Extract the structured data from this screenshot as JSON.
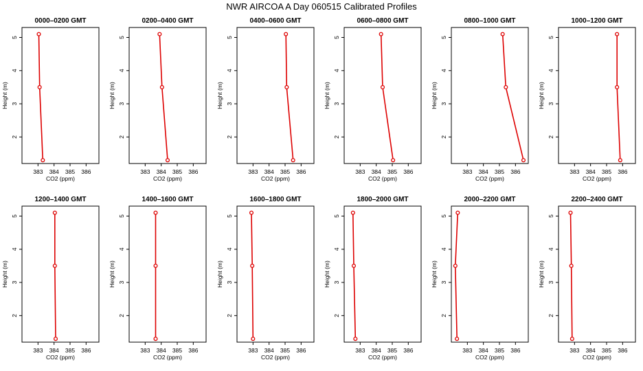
{
  "title": "NWR AIRCOA A  Day 060515  Calibrated Profiles",
  "colors": {
    "series": "#dd0000",
    "axis": "#000000",
    "background": "#ffffff"
  },
  "chart_data": [
    {
      "type": "line",
      "title": "0000–0200 GMT",
      "xlabel": "CO2 (ppm)",
      "ylabel": "Height (m)",
      "xlim": [
        382,
        386.8
      ],
      "ylim": [
        1.2,
        5.3
      ],
      "xticks": [
        383,
        384,
        385,
        386
      ],
      "yticks": [
        2,
        3,
        4,
        5
      ],
      "x": [
        383.05,
        383.1,
        383.3
      ],
      "y": [
        5.1,
        3.5,
        1.3
      ]
    },
    {
      "type": "line",
      "title": "0200–0400 GMT",
      "xlabel": "CO2 (ppm)",
      "ylabel": "Height (m)",
      "xlim": [
        382,
        386.8
      ],
      "ylim": [
        1.2,
        5.3
      ],
      "xticks": [
        383,
        384,
        385,
        386
      ],
      "yticks": [
        2,
        3,
        4,
        5
      ],
      "x": [
        383.9,
        384.05,
        384.4
      ],
      "y": [
        5.1,
        3.5,
        1.3
      ]
    },
    {
      "type": "line",
      "title": "0400–0600 GMT",
      "xlabel": "CO2 (ppm)",
      "ylabel": "Height (m)",
      "xlim": [
        382,
        386.8
      ],
      "ylim": [
        1.2,
        5.3
      ],
      "xticks": [
        383,
        384,
        385,
        386
      ],
      "yticks": [
        2,
        3,
        4,
        5
      ],
      "x": [
        385.05,
        385.1,
        385.5
      ],
      "y": [
        5.1,
        3.5,
        1.3
      ]
    },
    {
      "type": "line",
      "title": "0600–0800 GMT",
      "xlabel": "CO2 (ppm)",
      "ylabel": "Height (m)",
      "xlim": [
        382,
        386.8
      ],
      "ylim": [
        1.2,
        5.3
      ],
      "xticks": [
        383,
        384,
        385,
        386
      ],
      "yticks": [
        2,
        3,
        4,
        5
      ],
      "x": [
        384.3,
        384.4,
        385.05
      ],
      "y": [
        5.1,
        3.5,
        1.3
      ]
    },
    {
      "type": "line",
      "title": "0800–1000 GMT",
      "xlabel": "CO2 (ppm)",
      "ylabel": "Height (m)",
      "xlim": [
        382,
        386.8
      ],
      "ylim": [
        1.2,
        5.3
      ],
      "xticks": [
        383,
        384,
        385,
        386
      ],
      "yticks": [
        2,
        3,
        4,
        5
      ],
      "x": [
        385.2,
        385.4,
        386.5
      ],
      "y": [
        5.1,
        3.5,
        1.3
      ]
    },
    {
      "type": "line",
      "title": "1000–1200 GMT",
      "xlabel": "CO2 (ppm)",
      "ylabel": "Height (m)",
      "xlim": [
        382,
        386.8
      ],
      "ylim": [
        1.2,
        5.3
      ],
      "xticks": [
        383,
        384,
        385,
        386
      ],
      "yticks": [
        2,
        3,
        4,
        5
      ],
      "x": [
        385.65,
        385.65,
        385.85
      ],
      "y": [
        5.1,
        3.5,
        1.3
      ]
    },
    {
      "type": "line",
      "title": "1200–1400 GMT",
      "xlabel": "CO2 (ppm)",
      "ylabel": "Height (m)",
      "xlim": [
        382,
        386.8
      ],
      "ylim": [
        1.2,
        5.3
      ],
      "xticks": [
        383,
        384,
        385,
        386
      ],
      "yticks": [
        2,
        3,
        4,
        5
      ],
      "x": [
        384.05,
        384.05,
        384.1
      ],
      "y": [
        5.1,
        3.5,
        1.3
      ]
    },
    {
      "type": "line",
      "title": "1400–1600 GMT",
      "xlabel": "CO2 (ppm)",
      "ylabel": "Height (m)",
      "xlim": [
        382,
        386.8
      ],
      "ylim": [
        1.2,
        5.3
      ],
      "xticks": [
        383,
        384,
        385,
        386
      ],
      "yticks": [
        2,
        3,
        4,
        5
      ],
      "x": [
        383.65,
        383.65,
        383.65
      ],
      "y": [
        5.1,
        3.5,
        1.3
      ]
    },
    {
      "type": "line",
      "title": "1600–1800 GMT",
      "xlabel": "CO2 (ppm)",
      "ylabel": "Height (m)",
      "xlim": [
        382,
        386.8
      ],
      "ylim": [
        1.2,
        5.3
      ],
      "xticks": [
        383,
        384,
        385,
        386
      ],
      "yticks": [
        2,
        3,
        4,
        5
      ],
      "x": [
        382.9,
        382.95,
        383.0
      ],
      "y": [
        5.1,
        3.5,
        1.3
      ]
    },
    {
      "type": "line",
      "title": "1800–2000 GMT",
      "xlabel": "CO2 (ppm)",
      "ylabel": "Height (m)",
      "xlim": [
        382,
        386.8
      ],
      "ylim": [
        1.2,
        5.3
      ],
      "xticks": [
        383,
        384,
        385,
        386
      ],
      "yticks": [
        2,
        3,
        4,
        5
      ],
      "x": [
        382.55,
        382.6,
        382.7
      ],
      "y": [
        5.1,
        3.5,
        1.3
      ]
    },
    {
      "type": "line",
      "title": "2000–2200 GMT",
      "xlabel": "CO2 (ppm)",
      "ylabel": "Height (m)",
      "xlim": [
        382,
        386.8
      ],
      "ylim": [
        1.2,
        5.3
      ],
      "xticks": [
        383,
        384,
        385,
        386
      ],
      "yticks": [
        2,
        3,
        4,
        5
      ],
      "x": [
        382.4,
        382.25,
        382.35
      ],
      "y": [
        5.1,
        3.5,
        1.3
      ]
    },
    {
      "type": "line",
      "title": "2200–2400 GMT",
      "xlabel": "CO2 (ppm)",
      "ylabel": "Height (m)",
      "xlim": [
        382,
        386.8
      ],
      "ylim": [
        1.2,
        5.3
      ],
      "xticks": [
        383,
        384,
        385,
        386
      ],
      "yticks": [
        2,
        3,
        4,
        5
      ],
      "x": [
        382.75,
        382.8,
        382.85
      ],
      "y": [
        5.1,
        3.5,
        1.3
      ]
    }
  ]
}
